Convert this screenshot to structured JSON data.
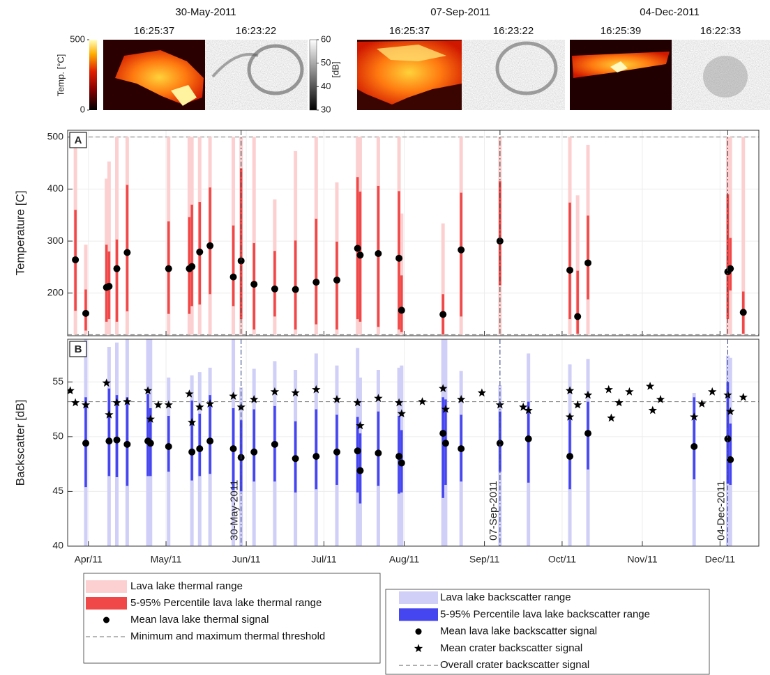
{
  "images": {
    "groups": [
      {
        "date": "30-May-2011",
        "times": [
          "16:25:37",
          "16:23:22"
        ]
      },
      {
        "date": "07-Sep-2011",
        "times": [
          "16:25:37",
          "16:23:22"
        ]
      },
      {
        "date": "04-Dec-2011",
        "times": [
          "16:25:39",
          "16:22:33"
        ]
      }
    ],
    "thermal_colorbar": {
      "label": "Temp. [°C]",
      "lim": [
        0,
        500
      ],
      "ticks": [
        0,
        500
      ]
    },
    "backscatter_colorbar": {
      "label": "[dB]",
      "lim": [
        30,
        60
      ],
      "ticks": [
        30,
        40,
        50,
        60
      ]
    }
  },
  "chart_data": [
    {
      "type": "range",
      "panel_label": "A",
      "ylabel": "Temperature [C]",
      "xlim": [
        83,
        350
      ],
      "ylim": [
        118,
        513
      ],
      "yticks": [
        200,
        300,
        400,
        500
      ],
      "grid": true,
      "x": [
        86,
        90,
        98,
        99,
        102,
        106,
        122,
        130,
        131,
        134,
        138,
        147,
        150,
        155,
        163,
        171,
        179,
        187,
        195,
        196,
        203,
        211,
        212,
        228,
        235,
        250,
        277,
        280,
        284,
        338,
        339,
        344
      ],
      "series": [
        {
          "name": "Lava lake thermal range",
          "color": "#fcd0d0",
          "marker": "bar",
          "lows": [
            120,
            120,
            120,
            120,
            120,
            120,
            120,
            120,
            120,
            120,
            120,
            120,
            120,
            120,
            120,
            120,
            120,
            120,
            120,
            120,
            120,
            120,
            120,
            120,
            120,
            120,
            120,
            120,
            120,
            120,
            120,
            120
          ],
          "highs": [
            500,
            293,
            420,
            453,
            500,
            500,
            500,
            500,
            500,
            500,
            500,
            500,
            500,
            500,
            380,
            473,
            500,
            413,
            500,
            500,
            500,
            500,
            353,
            334,
            500,
            500,
            500,
            388,
            485,
            500,
            500,
            500
          ]
        },
        {
          "name": "5-95% Percentile lava lake thermal range",
          "color": "#f04848",
          "marker": "bar",
          "lows": [
            166,
            128,
            145,
            150,
            145,
            165,
            160,
            160,
            175,
            178,
            198,
            175,
            150,
            130,
            155,
            130,
            140,
            130,
            150,
            145,
            135,
            130,
            125,
            120,
            155,
            215,
            150,
            122,
            188,
            150,
            205,
            122
          ],
          "highs": [
            360,
            207,
            293,
            280,
            303,
            408,
            338,
            346,
            370,
            375,
            403,
            330,
            440,
            296,
            281,
            301,
            343,
            299,
            423,
            395,
            406,
            396,
            234,
            198,
            393,
            415,
            374,
            243,
            349,
            390,
            306,
            203
          ]
        },
        {
          "name": "Mean lava lake thermal signal",
          "color": "#000000",
          "marker": "dot",
          "values": [
            264,
            161,
            211,
            213,
            247,
            278,
            247,
            247,
            251,
            279,
            291,
            231,
            262,
            217,
            208,
            207,
            221,
            225,
            286,
            273,
            276,
            267,
            167,
            159,
            283,
            300,
            244,
            155,
            258,
            241,
            247,
            163
          ]
        }
      ],
      "reference_lines": {
        "name": "Minimum and maximum thermal threshold",
        "color": "#8c8c8c",
        "values": [
          120,
          500
        ]
      }
    },
    {
      "type": "range",
      "panel_label": "B",
      "ylabel": "Backscatter [dB]",
      "xlim": [
        83,
        350
      ],
      "ylim": [
        40,
        58.9
      ],
      "yticks": [
        40,
        45,
        50,
        55
      ],
      "grid": true,
      "xticks": [
        {
          "value": 91,
          "label": "Apr/11"
        },
        {
          "value": 121,
          "label": "May/11"
        },
        {
          "value": 152,
          "label": "Jun/11"
        },
        {
          "value": 182,
          "label": "Jul/11"
        },
        {
          "value": 213,
          "label": "Aug/11"
        },
        {
          "value": 244,
          "label": "Sep/11"
        },
        {
          "value": 274,
          "label": "Oct/11"
        },
        {
          "value": 305,
          "label": "Nov/11"
        },
        {
          "value": 335,
          "label": "Dec/11"
        }
      ],
      "x": [
        90,
        99,
        102,
        106,
        114,
        115,
        122,
        131,
        134,
        138,
        147,
        150,
        155,
        163,
        171,
        179,
        187,
        195,
        196,
        203,
        211,
        212,
        228,
        229,
        235,
        250,
        261,
        277,
        284,
        325,
        338,
        339
      ],
      "series": [
        {
          "name": "Lava lake backscatter range",
          "color": "#cfcff7",
          "marker": "bar",
          "lows": [
            40,
            40,
            40,
            40,
            40,
            40,
            40,
            40,
            40,
            40,
            40,
            40,
            40,
            40,
            40,
            40,
            40,
            40,
            40,
            40,
            40,
            40,
            40,
            40,
            40,
            40,
            40,
            40,
            40,
            40,
            40,
            40
          ],
          "highs": [
            58.9,
            58.2,
            58.6,
            58.9,
            58.9,
            58.9,
            55.4,
            55.6,
            55.9,
            56.3,
            58.9,
            54.5,
            56.2,
            56.9,
            56.1,
            57.6,
            56.5,
            58.1,
            55.4,
            56.1,
            56.3,
            56.5,
            58.9,
            58.9,
            56.0,
            54.7,
            57.6,
            56.6,
            57.1,
            54.0,
            57.4,
            57.2
          ]
        },
        {
          "name": "5-95% Percentile lava lake backscatter range",
          "color": "#4646f0",
          "marker": "bar",
          "lows": [
            45.4,
            46.4,
            46.3,
            45.5,
            46.4,
            46.4,
            46.8,
            46.0,
            46.4,
            46.6,
            45.1,
            45.0,
            45.9,
            45.9,
            44.9,
            45.2,
            45.6,
            44.9,
            43.9,
            45.5,
            44.8,
            44.9,
            44.4,
            45.6,
            45.9,
            46.8,
            45.8,
            45.2,
            47.0,
            46.1,
            45.7,
            45.6
          ],
          "highs": [
            53.6,
            54.4,
            53.8,
            53.6,
            53.9,
            52.6,
            51.9,
            53.3,
            52.1,
            53.8,
            52.6,
            51.5,
            52.5,
            52.8,
            51.4,
            52.5,
            52.0,
            51.8,
            50.3,
            52.3,
            51.9,
            50.6,
            53.6,
            53.4,
            52.0,
            52.3,
            53.2,
            52.0,
            53.2,
            53.6,
            55.0,
            51.2
          ]
        },
        {
          "name": "Mean lava lake backscatter signal",
          "color": "#000000",
          "marker": "dot",
          "values": [
            49.4,
            49.6,
            49.7,
            49.3,
            49.6,
            49.4,
            49.1,
            48.6,
            48.9,
            49.6,
            48.9,
            48.1,
            48.6,
            49.3,
            48.0,
            48.2,
            48.6,
            48.7,
            46.9,
            48.5,
            48.2,
            47.6,
            50.3,
            49.4,
            48.9,
            49.4,
            49.8,
            48.2,
            50.3,
            49.1,
            49.8,
            47.9
          ]
        },
        {
          "name": "Mean crater backscatter signal",
          "color": "#000000",
          "marker": "star",
          "x": [
            84,
            86,
            90,
            98,
            99,
            102,
            106,
            114,
            115,
            118,
            122,
            130,
            131,
            134,
            138,
            147,
            150,
            155,
            163,
            171,
            179,
            187,
            195,
            196,
            203,
            211,
            212,
            220,
            228,
            229,
            235,
            243,
            250,
            259,
            261,
            277,
            277,
            280,
            284,
            292,
            293,
            296,
            300,
            308,
            309,
            312,
            325,
            328,
            332,
            338,
            339,
            344
          ],
          "values": [
            54.2,
            53.1,
            52.9,
            54.9,
            52.0,
            53.1,
            53.2,
            54.2,
            51.6,
            52.9,
            52.9,
            53.9,
            51.3,
            52.7,
            53.0,
            53.7,
            52.7,
            53.4,
            54.1,
            54.0,
            54.3,
            53.4,
            53.1,
            51.0,
            53.5,
            53.1,
            52.1,
            53.2,
            54.4,
            52.5,
            53.4,
            54.0,
            52.9,
            52.7,
            52.4,
            54.2,
            51.8,
            52.9,
            53.8,
            54.3,
            51.7,
            53.1,
            54.1,
            54.6,
            52.4,
            53.4,
            51.8,
            53.0,
            54.1,
            53.8,
            52.3,
            53.6
          ]
        }
      ],
      "reference_lines": {
        "name": "Overall crater backscatter signal",
        "color": "#8c8c8c",
        "values": [
          53.2
        ]
      },
      "events": [
        {
          "x": 150,
          "label": "30-May-2011"
        },
        {
          "x": 250,
          "label": "07-Sep-2011"
        },
        {
          "x": 338,
          "label": "04-Dec-2011"
        }
      ]
    }
  ]
}
